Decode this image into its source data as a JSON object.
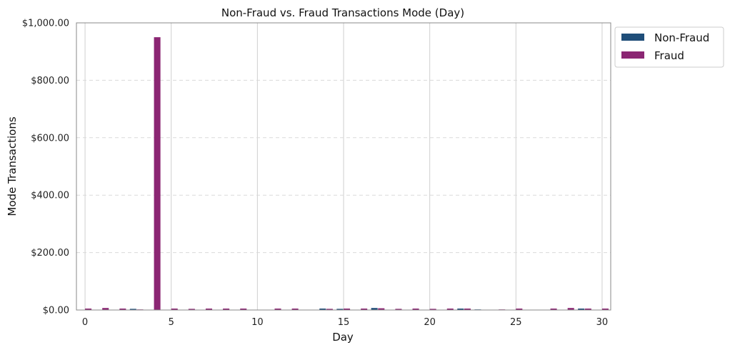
{
  "chart_data": {
    "type": "bar",
    "title": "Non-Fraud vs. Fraud Transactions Mode (Day)",
    "xlabel": "Day",
    "ylabel": "Mode Transactions",
    "xlim": [
      -0.5,
      30.5
    ],
    "ylim": [
      0,
      1000
    ],
    "x_ticks": [
      0,
      5,
      10,
      15,
      20,
      25,
      30
    ],
    "y_ticks": [
      0,
      200,
      400,
      600,
      800,
      1000
    ],
    "y_tick_labels": [
      "$0.00",
      "$200.00",
      "$400.00",
      "$600.00",
      "$800.00",
      "$1,000.00"
    ],
    "grid": {
      "x": true,
      "y": true
    },
    "legend_position": "outside top-right",
    "x": [
      0,
      1,
      2,
      3,
      4,
      5,
      6,
      7,
      8,
      9,
      10,
      11,
      12,
      13,
      14,
      15,
      16,
      17,
      18,
      19,
      20,
      21,
      22,
      23,
      24,
      25,
      26,
      27,
      28,
      29,
      30
    ],
    "series": [
      {
        "name": "Non-Fraud",
        "color": "#1f4e79",
        "values": [
          1,
          1,
          1,
          4,
          1,
          1,
          1,
          1,
          1,
          1,
          1,
          1,
          1,
          1,
          5,
          4,
          1,
          7,
          1,
          1,
          1,
          1,
          5,
          2,
          1,
          1,
          1,
          1,
          1,
          5,
          1
        ]
      },
      {
        "name": "Fraud",
        "color": "#8b2673",
        "values": [
          5,
          7,
          5,
          2,
          950,
          5,
          4,
          5,
          5,
          5,
          1,
          5,
          5,
          1,
          4,
          5,
          5,
          6,
          4,
          5,
          4,
          5,
          5,
          1,
          2,
          5,
          1,
          5,
          7,
          5,
          5
        ]
      }
    ]
  }
}
